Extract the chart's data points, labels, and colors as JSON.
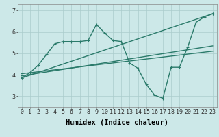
{
  "background_color": "#cce8e8",
  "grid_color": "#aacccc",
  "line_color": "#2a7a6a",
  "line_width": 1.0,
  "marker_size": 3,
  "xlabel": "Humidex (Indice chaleur)",
  "xlabel_fontsize": 7.5,
  "tick_fontsize": 6,
  "ylim": [
    2.5,
    7.3
  ],
  "xlim": [
    -0.5,
    23.5
  ],
  "yticks": [
    3,
    4,
    5,
    6,
    7
  ],
  "xticks": [
    0,
    1,
    2,
    3,
    4,
    5,
    6,
    7,
    8,
    9,
    10,
    11,
    12,
    13,
    14,
    15,
    16,
    17,
    18,
    19,
    20,
    21,
    22,
    23
  ],
  "series1": {
    "x": [
      0,
      1,
      2,
      3,
      4,
      5,
      6,
      7,
      8,
      9,
      10,
      11,
      12,
      13,
      14,
      15,
      16,
      17,
      18,
      19,
      20,
      21,
      22,
      23
    ],
    "y": [
      3.85,
      4.1,
      4.45,
      4.95,
      5.45,
      5.55,
      5.55,
      5.55,
      5.6,
      6.35,
      5.95,
      5.6,
      5.55,
      4.55,
      4.3,
      3.55,
      3.05,
      2.9,
      4.35,
      4.35,
      5.3,
      6.45,
      6.7,
      6.85
    ]
  },
  "series2": {
    "x": [
      0,
      23
    ],
    "y": [
      3.85,
      6.85
    ]
  },
  "series3": {
    "x": [
      0,
      23
    ],
    "y": [
      3.95,
      5.35
    ]
  },
  "series4": {
    "x": [
      0,
      23
    ],
    "y": [
      4.05,
      5.1
    ]
  }
}
